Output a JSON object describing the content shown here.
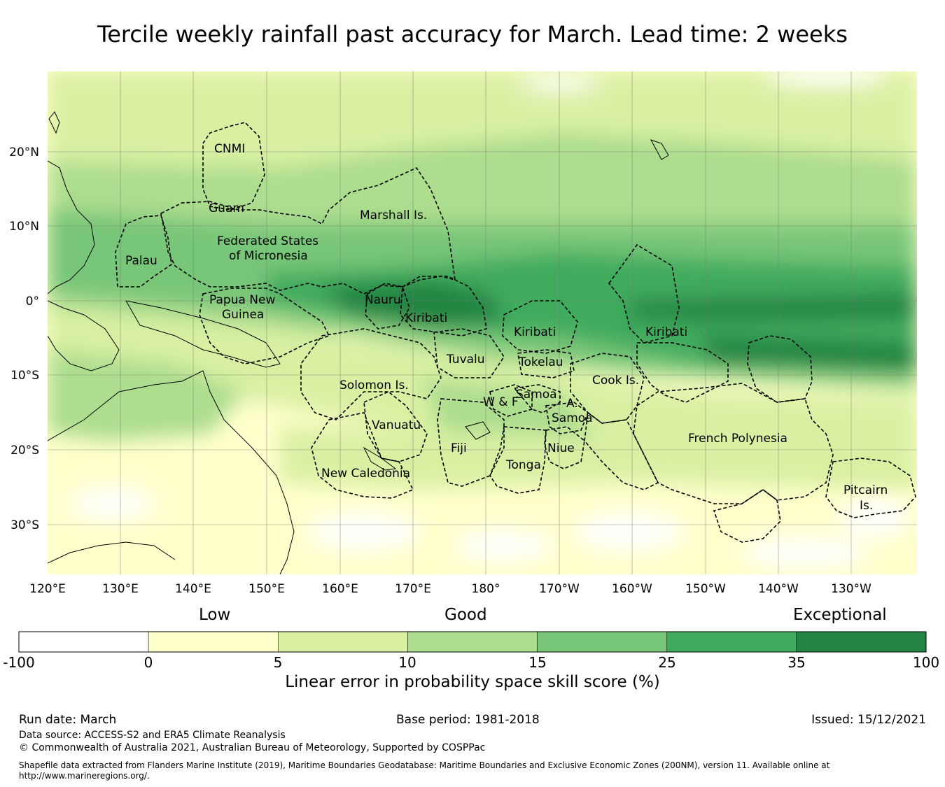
{
  "title": "Tercile weekly rainfall past accuracy for March. Lead time: 2 weeks",
  "map": {
    "lon_labels": [
      "120°E",
      "130°E",
      "140°E",
      "150°E",
      "160°E",
      "170°E",
      "180°",
      "170°W",
      "160°W",
      "150°W",
      "140°W",
      "130°W"
    ],
    "lat_labels": [
      "20°N",
      "10°N",
      "0°",
      "10°S",
      "20°S",
      "30°S"
    ],
    "regions": [
      {
        "name": "CNMI"
      },
      {
        "name": "Guam"
      },
      {
        "name": "Marshall Is."
      },
      {
        "name": "Federated States"
      },
      {
        "name": "of Micronesia"
      },
      {
        "name": "Palau"
      },
      {
        "name": "Papua New"
      },
      {
        "name": "Guinea"
      },
      {
        "name": "Nauru"
      },
      {
        "name": "Kiribati"
      },
      {
        "name": "Kiribati"
      },
      {
        "name": "Kiribati"
      },
      {
        "name": "Tuvalu"
      },
      {
        "name": "Tokelau"
      },
      {
        "name": "Solomon Is."
      },
      {
        "name": "Cook Is."
      },
      {
        "name": "Samoa"
      },
      {
        "name": "W & F"
      },
      {
        "name": "A."
      },
      {
        "name": "Samoa"
      },
      {
        "name": "Vanuatu"
      },
      {
        "name": "Fiji"
      },
      {
        "name": "Niue"
      },
      {
        "name": "Tonga"
      },
      {
        "name": "French Polynesia"
      },
      {
        "name": "New Caledonia"
      },
      {
        "name": "Pitcairn"
      },
      {
        "name": "Is."
      }
    ]
  },
  "colorbar": {
    "categories": [
      "Low",
      "Good",
      "Exceptional"
    ],
    "ticks": [
      "-100",
      "0",
      "5",
      "10",
      "15",
      "25",
      "35",
      "100"
    ],
    "colors": [
      "#ffffff",
      "#ffffcc",
      "#d9f0a3",
      "#addd8e",
      "#78c679",
      "#41ab5d",
      "#238443"
    ],
    "label": "Linear error in probability space skill score (%)"
  },
  "footer": {
    "run_date": "Run date: March",
    "base_period": "Base period: 1981-2018",
    "issued": "Issued: 15/12/2021",
    "data_source": "Data source: ACCESS-S2 and ERA5 Climate Reanalysis",
    "copyright": "© Commonwealth of Australia 2021, Australian Bureau of Meteorology, Supported by COSPPac",
    "shapefile_1": "Shapefile data extracted from Flanders Marine Institute (2019), Maritime Boundaries Geodatabase: Maritime Boundaries and Exclusive Economic Zones (200NM), version 11. Available online at",
    "shapefile_2": "http://www.marineregions.org/."
  }
}
